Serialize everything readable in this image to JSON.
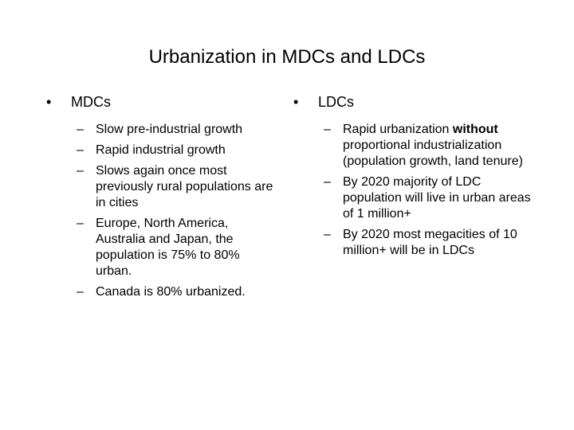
{
  "title": "Urbanization in MDCs and LDCs",
  "left": {
    "bullet": "MDCs",
    "items": [
      "Slow pre-industrial growth",
      "Rapid industrial growth",
      "Slows again once most previously rural populations are in cities",
      "Europe, North America, Australia and Japan, the population is 75% to 80% urban.",
      "Canada is 80% urbanized."
    ]
  },
  "right": {
    "bullet": "LDCs",
    "item1_pre": "Rapid urbanization ",
    "item1_bold": "without",
    "item1_post": " proportional industrialization (population growth, land tenure)",
    "items": [
      "By 2020 majority of LDC population will live in urban areas of 1 million+",
      "By 2020 most megacities of 10 million+ will be in LDCs"
    ]
  },
  "bullet_symbol": "•",
  "dash_symbol": "–"
}
